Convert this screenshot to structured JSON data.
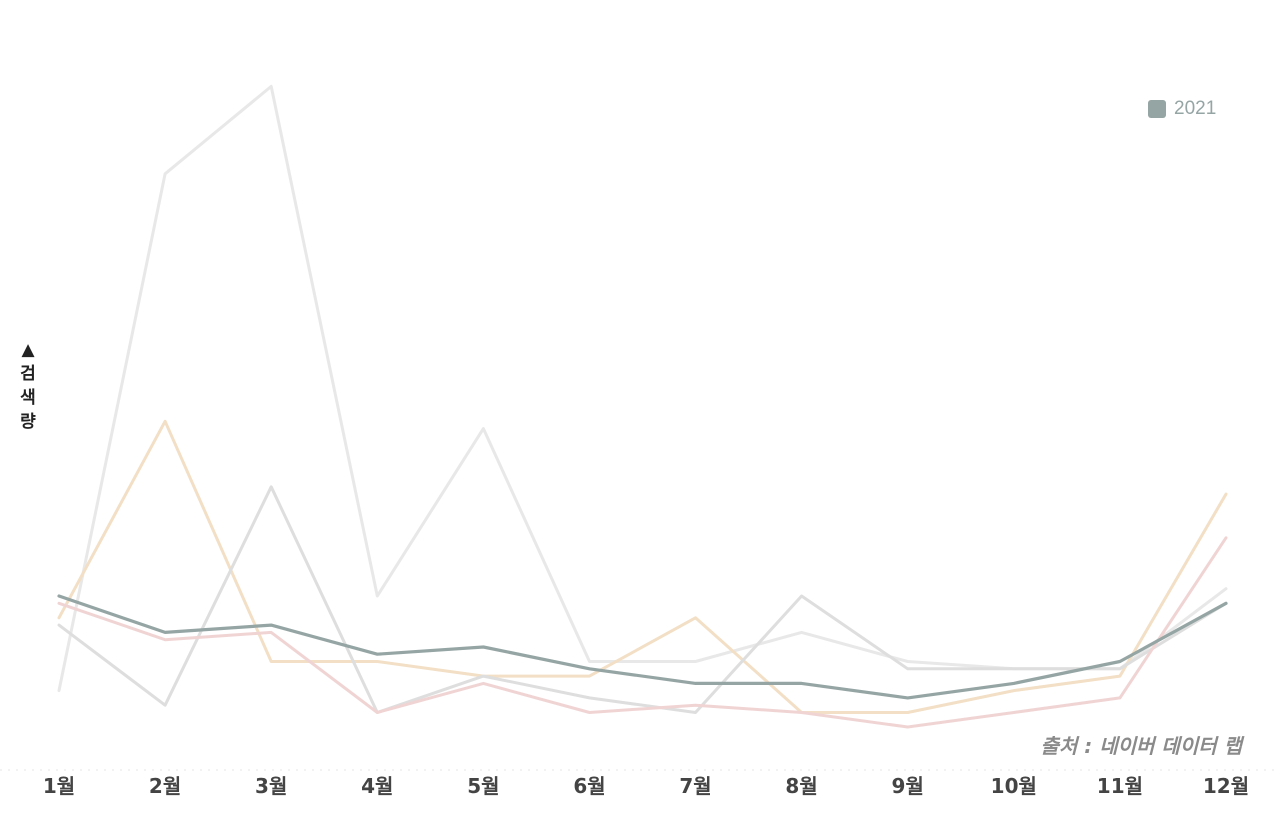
{
  "chart_data": {
    "type": "line",
    "categories": [
      "1월",
      "2월",
      "3월",
      "4월",
      "5월",
      "6월",
      "7월",
      "8월",
      "9월",
      "10월",
      "11월",
      "12월"
    ],
    "ylabel": "▲\n검\n색\n량",
    "ylim": [
      0,
      100
    ],
    "grid": false,
    "legend_position": "top-right",
    "source": "출처 : 네이버 데이터 랩",
    "series": [
      {
        "name": "",
        "color": "#e8e8e8",
        "values": [
          12,
          83,
          95,
          25,
          48,
          16,
          16,
          20,
          16,
          15,
          15,
          26
        ]
      },
      {
        "name": "",
        "color": "#f2dfc5",
        "values": [
          22,
          49,
          16,
          16,
          14,
          14,
          22,
          9,
          9,
          12,
          14,
          39
        ]
      },
      {
        "name": "",
        "color": "#dedede",
        "values": [
          21,
          10,
          40,
          9,
          14,
          11,
          9,
          25,
          15,
          15,
          15,
          24
        ]
      },
      {
        "name": "",
        "color": "#f0d4d4",
        "values": [
          24,
          19,
          20,
          9,
          13,
          9,
          10,
          9,
          7,
          9,
          11,
          33
        ]
      },
      {
        "name": "2021",
        "color": "#95a5a4",
        "values": [
          25,
          20,
          21,
          17,
          18,
          15,
          13,
          13,
          11,
          13,
          16,
          24
        ]
      }
    ]
  }
}
